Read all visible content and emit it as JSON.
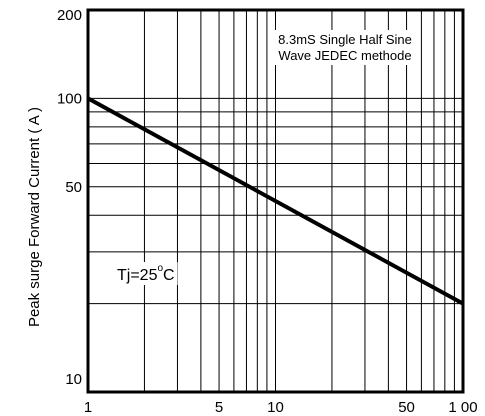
{
  "chart_data": {
    "type": "line",
    "x_scale": "log",
    "y_scale": "log",
    "xlim": [
      1,
      100
    ],
    "ylim": [
      10,
      200
    ],
    "ylabel": "Peak surge Forward Current ( A )",
    "xlabel": "",
    "x_ticks": [
      {
        "value": 1,
        "label": "1"
      },
      {
        "value": 5,
        "label": "5"
      },
      {
        "value": 10,
        "label": "10"
      },
      {
        "value": 50,
        "label": "50"
      },
      {
        "value": 100,
        "label": "1 00"
      }
    ],
    "y_ticks": [
      {
        "value": 10,
        "label": "10"
      },
      {
        "value": 50,
        "label": "50"
      },
      {
        "value": 100,
        "label": "100"
      },
      {
        "value": 200,
        "label": "200"
      }
    ],
    "grid": true,
    "series": [
      {
        "x": [
          1,
          100
        ],
        "y": [
          100,
          20
        ]
      }
    ],
    "annotations": {
      "note_line1": "8.3mS Single Half Sine",
      "note_line2": "Wave JEDEC methode",
      "temp_prefix": "Tj=25",
      "temp_degree": "o",
      "temp_unit": "C"
    }
  }
}
